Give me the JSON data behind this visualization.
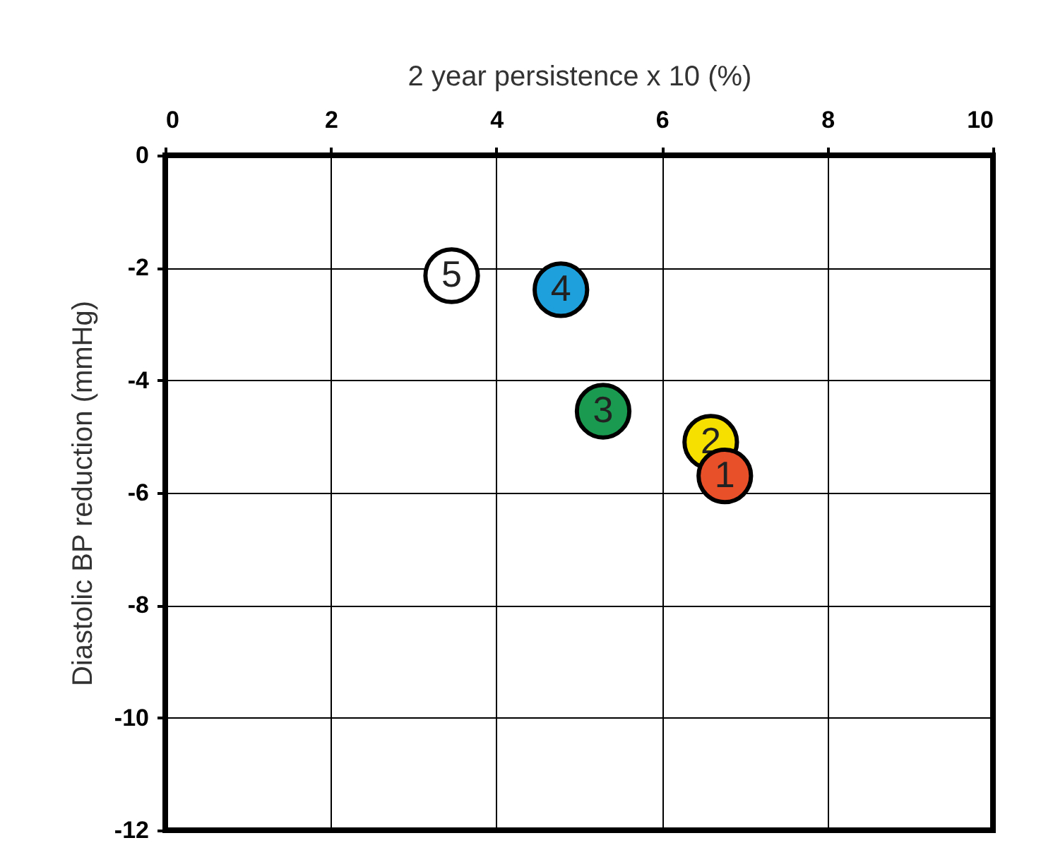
{
  "chart_data": {
    "type": "scatter",
    "xlabel": "2 year persistence x 10 (%)",
    "ylabel": "Diastolic BP reduction (mmHg)",
    "xlim": [
      0,
      10
    ],
    "xticks": [
      0,
      2,
      4,
      6,
      8,
      10
    ],
    "ylim": [
      -12,
      0
    ],
    "yticks": [
      -12,
      -10,
      -8,
      -6,
      -4,
      -2,
      0
    ],
    "grid": true,
    "marker": "circle",
    "series": [
      {
        "name": "5",
        "color": "#ffffff",
        "x": [
          3.46
        ],
        "values": [
          -2.14
        ]
      },
      {
        "name": "4",
        "color": "#1ea0dc",
        "x": [
          4.78
        ],
        "values": [
          -2.39
        ]
      },
      {
        "name": "3",
        "color": "#1a9a50",
        "x": [
          5.29
        ],
        "values": [
          -4.55
        ]
      },
      {
        "name": "2",
        "color": "#f5e000",
        "x": [
          6.59
        ],
        "values": [
          -5.1
        ]
      },
      {
        "name": "1",
        "color": "#e8502a",
        "x": [
          6.76
        ],
        "values": [
          -5.7
        ]
      }
    ]
  }
}
